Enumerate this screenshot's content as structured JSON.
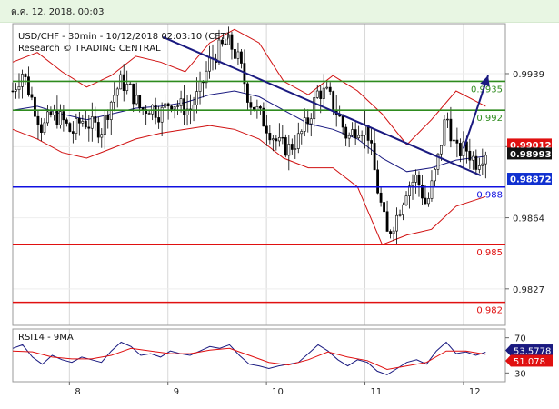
{
  "header": {
    "timestamp": "ต.ค. 12, 2018, 00:03"
  },
  "chart_data": [
    {
      "type": "candlestick",
      "title": "USD/CHF - 30min - 10/12/2018 02:03:10 (CET)",
      "subtitle": "Research © TRADING CENTRAL",
      "ylim": [
        0.9808,
        0.9965
      ],
      "x_ticks": [
        "8",
        "9",
        "10",
        "11",
        "12"
      ],
      "y_ticks": [
        0.9939,
        0.9901,
        0.9864,
        0.9827
      ],
      "levels": [
        {
          "label": "0.9935",
          "value": 0.9935,
          "color": "#2e8b1e"
        },
        {
          "label": "0.992",
          "value": 0.992,
          "color": "#2e8b1e"
        },
        {
          "label": "0.988",
          "value": 0.988,
          "color": "#1010e0"
        },
        {
          "label": "0.985",
          "value": 0.985,
          "color": "#e01010"
        },
        {
          "label": "0.982",
          "value": 0.982,
          "color": "#e01010"
        }
      ],
      "price_tags": [
        {
          "label": "0.99012",
          "value": 0.99012,
          "bg": "#e01010",
          "fg": "#ffffff"
        },
        {
          "label": "0.98993",
          "value": 0.98993,
          "bg": "#111111",
          "fg": "#ffffff"
        },
        {
          "label": "0.98872",
          "value": 0.98872,
          "bg": "#1030d0",
          "fg": "#ffffff"
        }
      ],
      "trendline": {
        "start": [
          0.305,
          0.9958
        ],
        "end": [
          0.95,
          0.9886
        ],
        "color": "#1a1a80"
      },
      "projection_arrow": {
        "points": [
          [
            0.915,
            0.99
          ],
          [
            0.935,
            0.9915
          ],
          [
            0.965,
            0.9938
          ]
        ],
        "color": "#1a1a80"
      },
      "price_path": [
        [
          0.0,
          0.993
        ],
        [
          0.02,
          0.994
        ],
        [
          0.04,
          0.9925
        ],
        [
          0.06,
          0.991
        ],
        [
          0.08,
          0.9918
        ],
        [
          0.1,
          0.9915
        ],
        [
          0.12,
          0.9908
        ],
        [
          0.14,
          0.9915
        ],
        [
          0.16,
          0.9912
        ],
        [
          0.18,
          0.991
        ],
        [
          0.2,
          0.9925
        ],
        [
          0.22,
          0.9935
        ],
        [
          0.24,
          0.993
        ],
        [
          0.26,
          0.992
        ],
        [
          0.28,
          0.9922
        ],
        [
          0.3,
          0.9918
        ],
        [
          0.32,
          0.9925
        ],
        [
          0.34,
          0.9922
        ],
        [
          0.36,
          0.992
        ],
        [
          0.38,
          0.993
        ],
        [
          0.4,
          0.9945
        ],
        [
          0.42,
          0.9952
        ],
        [
          0.44,
          0.9955
        ],
        [
          0.46,
          0.9945
        ],
        [
          0.48,
          0.9925
        ],
        [
          0.5,
          0.9918
        ],
        [
          0.52,
          0.991
        ],
        [
          0.54,
          0.9902
        ],
        [
          0.56,
          0.99
        ],
        [
          0.58,
          0.9905
        ],
        [
          0.6,
          0.9915
        ],
        [
          0.62,
          0.993
        ],
        [
          0.64,
          0.9928
        ],
        [
          0.66,
          0.9918
        ],
        [
          0.68,
          0.9905
        ],
        [
          0.7,
          0.9912
        ],
        [
          0.72,
          0.991
        ],
        [
          0.74,
          0.988
        ],
        [
          0.76,
          0.9855
        ],
        [
          0.78,
          0.9865
        ],
        [
          0.8,
          0.988
        ],
        [
          0.82,
          0.9885
        ],
        [
          0.84,
          0.987
        ],
        [
          0.86,
          0.989
        ],
        [
          0.88,
          0.9918
        ],
        [
          0.9,
          0.9898
        ],
        [
          0.92,
          0.99
        ],
        [
          0.94,
          0.9893
        ],
        [
          0.96,
          0.9899
        ]
      ],
      "moving_average": [
        [
          0.0,
          0.992
        ],
        [
          0.05,
          0.9922
        ],
        [
          0.1,
          0.9918
        ],
        [
          0.15,
          0.9915
        ],
        [
          0.2,
          0.9918
        ],
        [
          0.25,
          0.9921
        ],
        [
          0.3,
          0.9922
        ],
        [
          0.35,
          0.9924
        ],
        [
          0.4,
          0.9928
        ],
        [
          0.45,
          0.993
        ],
        [
          0.5,
          0.9927
        ],
        [
          0.55,
          0.992
        ],
        [
          0.6,
          0.9913
        ],
        [
          0.65,
          0.991
        ],
        [
          0.7,
          0.9905
        ],
        [
          0.75,
          0.9895
        ],
        [
          0.8,
          0.9888
        ],
        [
          0.85,
          0.989
        ],
        [
          0.9,
          0.9894
        ],
        [
          0.96,
          0.9896
        ]
      ],
      "bollinger_upper": [
        [
          0.0,
          0.9945
        ],
        [
          0.05,
          0.995
        ],
        [
          0.1,
          0.994
        ],
        [
          0.15,
          0.9932
        ],
        [
          0.2,
          0.9938
        ],
        [
          0.25,
          0.9948
        ],
        [
          0.3,
          0.9945
        ],
        [
          0.35,
          0.994
        ],
        [
          0.4,
          0.9955
        ],
        [
          0.45,
          0.9962
        ],
        [
          0.5,
          0.9955
        ],
        [
          0.55,
          0.9935
        ],
        [
          0.6,
          0.9928
        ],
        [
          0.65,
          0.9938
        ],
        [
          0.7,
          0.993
        ],
        [
          0.75,
          0.9918
        ],
        [
          0.8,
          0.9902
        ],
        [
          0.85,
          0.9915
        ],
        [
          0.9,
          0.993
        ],
        [
          0.96,
          0.9922
        ]
      ],
      "bollinger_lower": [
        [
          0.0,
          0.991
        ],
        [
          0.05,
          0.9905
        ],
        [
          0.1,
          0.9898
        ],
        [
          0.15,
          0.9895
        ],
        [
          0.2,
          0.99
        ],
        [
          0.25,
          0.9905
        ],
        [
          0.3,
          0.9908
        ],
        [
          0.35,
          0.991
        ],
        [
          0.4,
          0.9912
        ],
        [
          0.45,
          0.991
        ],
        [
          0.5,
          0.9905
        ],
        [
          0.55,
          0.9895
        ],
        [
          0.6,
          0.989
        ],
        [
          0.65,
          0.989
        ],
        [
          0.7,
          0.988
        ],
        [
          0.75,
          0.985
        ],
        [
          0.8,
          0.9855
        ],
        [
          0.85,
          0.9858
        ],
        [
          0.9,
          0.987
        ],
        [
          0.96,
          0.9875
        ]
      ]
    },
    {
      "type": "line",
      "title": "RSI14 - 9MA",
      "ylim": [
        20,
        80
      ],
      "y_ticks": [
        70,
        50,
        30
      ],
      "value_tags": [
        {
          "label": "53.5778",
          "value": 53.5778,
          "bg": "#1a1a80",
          "fg": "#ffffff"
        },
        {
          "label": "51.078",
          "value": 51.078,
          "bg": "#e01010",
          "fg": "#ffffff"
        }
      ],
      "series": [
        {
          "color": "#1a1a80",
          "values": [
            [
              0.0,
              58
            ],
            [
              0.02,
              62
            ],
            [
              0.04,
              48
            ],
            [
              0.06,
              40
            ],
            [
              0.08,
              50
            ],
            [
              0.1,
              45
            ],
            [
              0.12,
              42
            ],
            [
              0.14,
              48
            ],
            [
              0.16,
              45
            ],
            [
              0.18,
              42
            ],
            [
              0.2,
              55
            ],
            [
              0.22,
              65
            ],
            [
              0.24,
              60
            ],
            [
              0.26,
              50
            ],
            [
              0.28,
              52
            ],
            [
              0.3,
              48
            ],
            [
              0.32,
              55
            ],
            [
              0.34,
              52
            ],
            [
              0.36,
              50
            ],
            [
              0.38,
              55
            ],
            [
              0.4,
              60
            ],
            [
              0.42,
              58
            ],
            [
              0.44,
              62
            ],
            [
              0.46,
              50
            ],
            [
              0.48,
              40
            ],
            [
              0.5,
              38
            ],
            [
              0.52,
              35
            ],
            [
              0.54,
              38
            ],
            [
              0.56,
              40
            ],
            [
              0.58,
              42
            ],
            [
              0.6,
              52
            ],
            [
              0.62,
              62
            ],
            [
              0.64,
              55
            ],
            [
              0.66,
              45
            ],
            [
              0.68,
              38
            ],
            [
              0.7,
              45
            ],
            [
              0.72,
              42
            ],
            [
              0.74,
              32
            ],
            [
              0.76,
              28
            ],
            [
              0.78,
              35
            ],
            [
              0.8,
              42
            ],
            [
              0.82,
              45
            ],
            [
              0.84,
              40
            ],
            [
              0.86,
              55
            ],
            [
              0.88,
              65
            ],
            [
              0.9,
              52
            ],
            [
              0.92,
              54
            ],
            [
              0.94,
              50
            ],
            [
              0.96,
              53.6
            ]
          ]
        },
        {
          "color": "#e01010",
          "values": [
            [
              0.0,
              55
            ],
            [
              0.04,
              54
            ],
            [
              0.08,
              48
            ],
            [
              0.12,
              46
            ],
            [
              0.16,
              46
            ],
            [
              0.2,
              50
            ],
            [
              0.24,
              58
            ],
            [
              0.28,
              55
            ],
            [
              0.32,
              52
            ],
            [
              0.36,
              52
            ],
            [
              0.4,
              56
            ],
            [
              0.44,
              58
            ],
            [
              0.48,
              50
            ],
            [
              0.52,
              42
            ],
            [
              0.56,
              39
            ],
            [
              0.6,
              45
            ],
            [
              0.64,
              54
            ],
            [
              0.68,
              48
            ],
            [
              0.72,
              44
            ],
            [
              0.76,
              34
            ],
            [
              0.8,
              38
            ],
            [
              0.84,
              42
            ],
            [
              0.88,
              55
            ],
            [
              0.92,
              55
            ],
            [
              0.96,
              51.1
            ]
          ]
        }
      ]
    }
  ]
}
